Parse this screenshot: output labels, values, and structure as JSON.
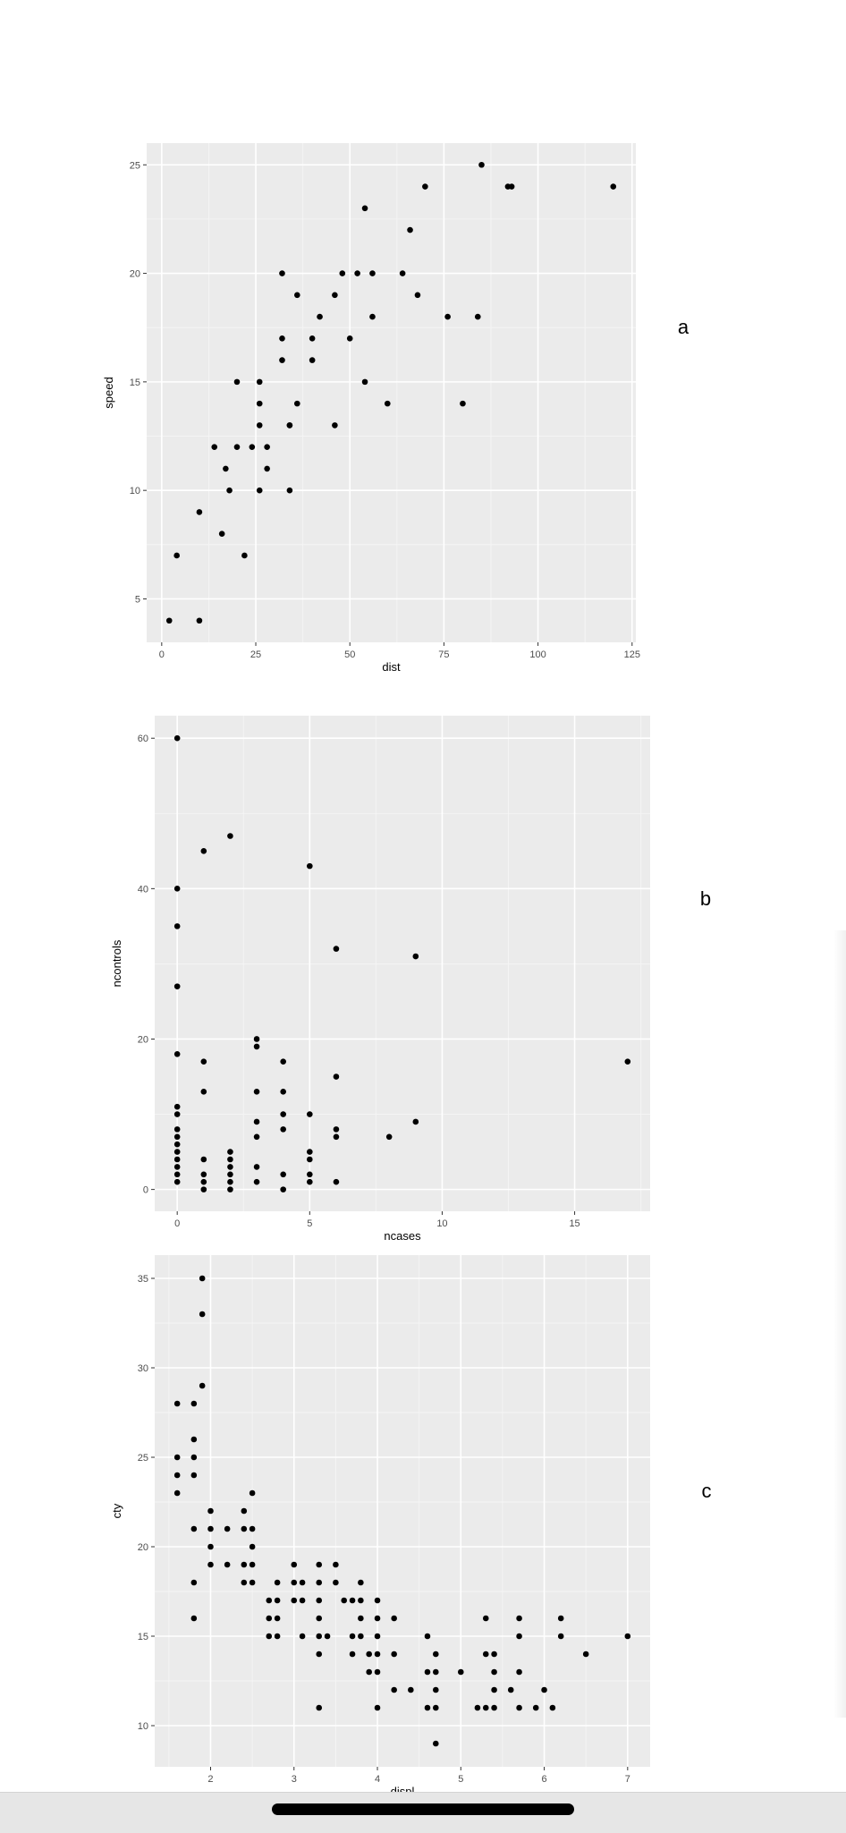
{
  "chart_data": [
    {
      "type": "scatter",
      "panel_label": "a",
      "xlabel": "dist",
      "ylabel": "speed",
      "xlim": [
        -4,
        126
      ],
      "ylim": [
        3,
        26
      ],
      "xticks": [
        0,
        25,
        50,
        75,
        100,
        125
      ],
      "yticks": [
        5,
        10,
        15,
        20,
        25
      ],
      "grid": true,
      "points": [
        [
          2,
          4
        ],
        [
          10,
          4
        ],
        [
          4,
          7
        ],
        [
          22,
          7
        ],
        [
          16,
          8
        ],
        [
          10,
          9
        ],
        [
          18,
          10
        ],
        [
          26,
          10
        ],
        [
          34,
          10
        ],
        [
          17,
          11
        ],
        [
          28,
          11
        ],
        [
          14,
          12
        ],
        [
          20,
          12
        ],
        [
          24,
          12
        ],
        [
          28,
          12
        ],
        [
          26,
          13
        ],
        [
          34,
          13
        ],
        [
          34,
          13
        ],
        [
          46,
          13
        ],
        [
          26,
          14
        ],
        [
          36,
          14
        ],
        [
          60,
          14
        ],
        [
          80,
          14
        ],
        [
          20,
          15
        ],
        [
          26,
          15
        ],
        [
          54,
          15
        ],
        [
          32,
          16
        ],
        [
          40,
          16
        ],
        [
          32,
          17
        ],
        [
          40,
          17
        ],
        [
          50,
          17
        ],
        [
          42,
          18
        ],
        [
          56,
          18
        ],
        [
          76,
          18
        ],
        [
          84,
          18
        ],
        [
          36,
          19
        ],
        [
          46,
          19
        ],
        [
          68,
          19
        ],
        [
          32,
          20
        ],
        [
          48,
          20
        ],
        [
          52,
          20
        ],
        [
          56,
          20
        ],
        [
          64,
          20
        ],
        [
          66,
          22
        ],
        [
          54,
          23
        ],
        [
          70,
          24
        ],
        [
          92,
          24
        ],
        [
          93,
          24
        ],
        [
          120,
          24
        ],
        [
          85,
          25
        ]
      ]
    },
    {
      "type": "scatter",
      "panel_label": "b",
      "xlabel": "ncases",
      "ylabel": "ncontrols",
      "xlim": [
        -0.85,
        17.85
      ],
      "ylim": [
        -2.9,
        63
      ],
      "xticks": [
        0,
        5,
        10,
        15
      ],
      "yticks": [
        0,
        20,
        40,
        60
      ],
      "grid": true,
      "points": [
        [
          0,
          1
        ],
        [
          0,
          2
        ],
        [
          0,
          3
        ],
        [
          0,
          4
        ],
        [
          0,
          5
        ],
        [
          0,
          6
        ],
        [
          0,
          7
        ],
        [
          0,
          8
        ],
        [
          0,
          10
        ],
        [
          0,
          11
        ],
        [
          0,
          18
        ],
        [
          0,
          27
        ],
        [
          0,
          35
        ],
        [
          0,
          40
        ],
        [
          0,
          60
        ],
        [
          1,
          0
        ],
        [
          1,
          1
        ],
        [
          1,
          2
        ],
        [
          1,
          4
        ],
        [
          1,
          13
        ],
        [
          1,
          17
        ],
        [
          1,
          45
        ],
        [
          2,
          0
        ],
        [
          2,
          1
        ],
        [
          2,
          2
        ],
        [
          2,
          3
        ],
        [
          2,
          4
        ],
        [
          2,
          5
        ],
        [
          2,
          47
        ],
        [
          3,
          1
        ],
        [
          3,
          3
        ],
        [
          3,
          7
        ],
        [
          3,
          9
        ],
        [
          3,
          13
        ],
        [
          3,
          19
        ],
        [
          3,
          20
        ],
        [
          4,
          0
        ],
        [
          4,
          2
        ],
        [
          4,
          8
        ],
        [
          4,
          10
        ],
        [
          4,
          13
        ],
        [
          4,
          17
        ],
        [
          5,
          1
        ],
        [
          5,
          2
        ],
        [
          5,
          4
        ],
        [
          5,
          5
        ],
        [
          5,
          10
        ],
        [
          5,
          43
        ],
        [
          6,
          1
        ],
        [
          6,
          7
        ],
        [
          6,
          8
        ],
        [
          6,
          15
        ],
        [
          6,
          32
        ],
        [
          8,
          7
        ],
        [
          9,
          9
        ],
        [
          9,
          31
        ],
        [
          17,
          17
        ]
      ]
    },
    {
      "type": "scatter",
      "panel_label": "c",
      "xlabel": "displ",
      "ylabel": "cty",
      "xlim": [
        1.33,
        7.27
      ],
      "ylim": [
        7.7,
        36.3
      ],
      "xticks": [
        2,
        3,
        4,
        5,
        6,
        7
      ],
      "yticks": [
        10,
        15,
        20,
        25,
        30,
        35
      ],
      "grid": true,
      "points": [
        [
          1.6,
          23
        ],
        [
          1.6,
          24
        ],
        [
          1.6,
          25
        ],
        [
          1.6,
          28
        ],
        [
          1.8,
          16
        ],
        [
          1.8,
          18
        ],
        [
          1.8,
          21
        ],
        [
          1.8,
          24
        ],
        [
          1.8,
          25
        ],
        [
          1.8,
          26
        ],
        [
          1.8,
          28
        ],
        [
          1.9,
          29
        ],
        [
          1.9,
          33
        ],
        [
          1.9,
          35
        ],
        [
          2.0,
          19
        ],
        [
          2.0,
          20
        ],
        [
          2.0,
          21
        ],
        [
          2.0,
          22
        ],
        [
          2.2,
          19
        ],
        [
          2.2,
          21
        ],
        [
          2.4,
          18
        ],
        [
          2.4,
          19
        ],
        [
          2.4,
          21
        ],
        [
          2.4,
          22
        ],
        [
          2.5,
          18
        ],
        [
          2.5,
          19
        ],
        [
          2.5,
          20
        ],
        [
          2.5,
          21
        ],
        [
          2.5,
          23
        ],
        [
          2.7,
          15
        ],
        [
          2.7,
          16
        ],
        [
          2.7,
          17
        ],
        [
          2.8,
          15
        ],
        [
          2.8,
          16
        ],
        [
          2.8,
          17
        ],
        [
          2.8,
          18
        ],
        [
          3.0,
          17
        ],
        [
          3.0,
          18
        ],
        [
          3.0,
          19
        ],
        [
          3.1,
          15
        ],
        [
          3.1,
          17
        ],
        [
          3.1,
          18
        ],
        [
          3.3,
          11
        ],
        [
          3.3,
          14
        ],
        [
          3.3,
          15
        ],
        [
          3.3,
          16
        ],
        [
          3.3,
          17
        ],
        [
          3.3,
          18
        ],
        [
          3.3,
          19
        ],
        [
          3.4,
          15
        ],
        [
          3.5,
          18
        ],
        [
          3.5,
          19
        ],
        [
          3.6,
          17
        ],
        [
          3.7,
          14
        ],
        [
          3.7,
          15
        ],
        [
          3.7,
          17
        ],
        [
          3.8,
          15
        ],
        [
          3.8,
          16
        ],
        [
          3.8,
          17
        ],
        [
          3.8,
          18
        ],
        [
          3.9,
          13
        ],
        [
          3.9,
          14
        ],
        [
          4.0,
          11
        ],
        [
          4.0,
          13
        ],
        [
          4.0,
          14
        ],
        [
          4.0,
          15
        ],
        [
          4.0,
          16
        ],
        [
          4.0,
          17
        ],
        [
          4.2,
          12
        ],
        [
          4.2,
          14
        ],
        [
          4.2,
          16
        ],
        [
          4.4,
          12
        ],
        [
          4.6,
          11
        ],
        [
          4.6,
          13
        ],
        [
          4.6,
          15
        ],
        [
          4.7,
          9
        ],
        [
          4.7,
          11
        ],
        [
          4.7,
          12
        ],
        [
          4.7,
          13
        ],
        [
          4.7,
          14
        ],
        [
          5.0,
          13
        ],
        [
          5.2,
          11
        ],
        [
          5.3,
          11
        ],
        [
          5.3,
          14
        ],
        [
          5.3,
          16
        ],
        [
          5.4,
          11
        ],
        [
          5.4,
          12
        ],
        [
          5.4,
          13
        ],
        [
          5.4,
          14
        ],
        [
          5.6,
          12
        ],
        [
          5.7,
          11
        ],
        [
          5.7,
          13
        ],
        [
          5.7,
          15
        ],
        [
          5.7,
          16
        ],
        [
          5.9,
          11
        ],
        [
          6.0,
          12
        ],
        [
          6.1,
          11
        ],
        [
          6.2,
          15
        ],
        [
          6.2,
          16
        ],
        [
          6.5,
          14
        ],
        [
          7.0,
          15
        ]
      ]
    }
  ]
}
